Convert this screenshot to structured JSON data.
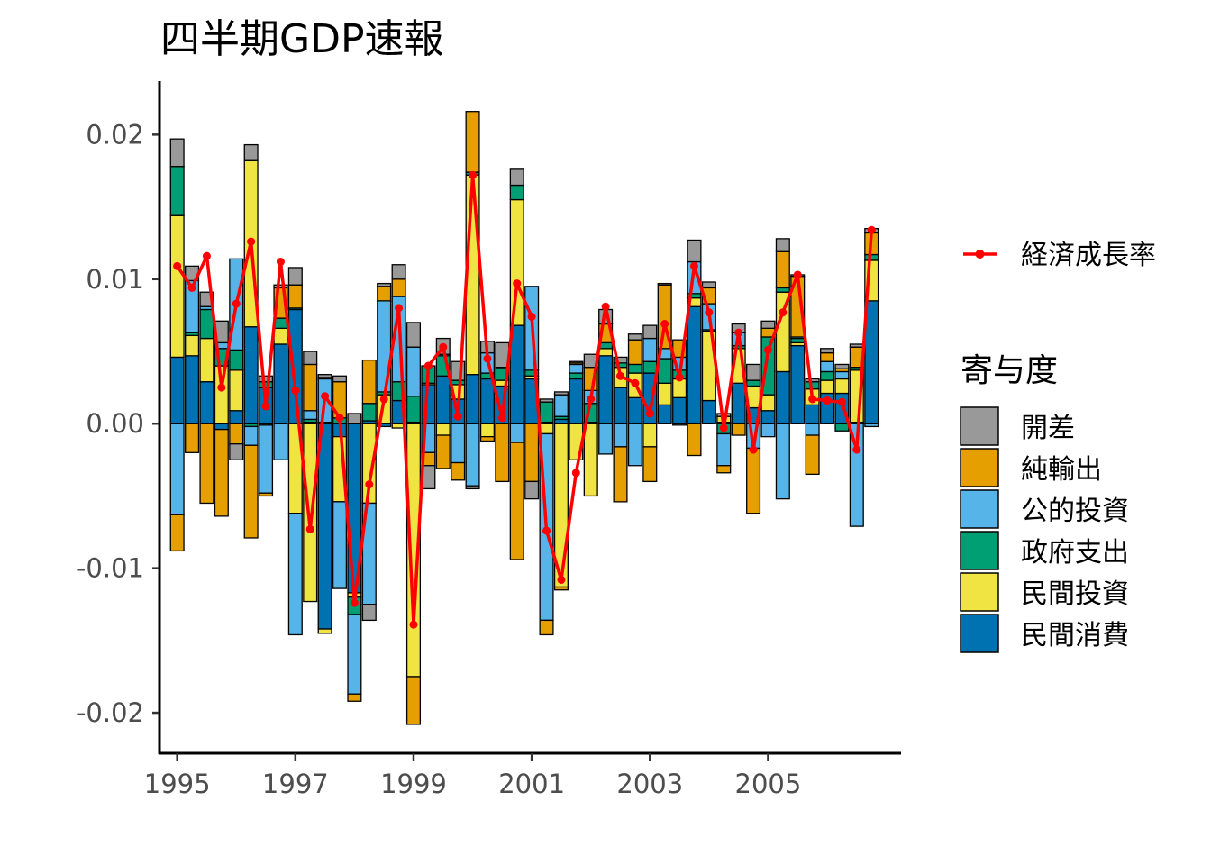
{
  "chart_data": {
    "type": "bar",
    "title": "四半期GDP速報",
    "xlabel": "",
    "ylabel": "",
    "ylim": [
      -0.0228,
      0.0237
    ],
    "xlim": [
      1994.7,
      2007.25
    ],
    "y_ticks": [
      -0.02,
      -0.01,
      0.0,
      0.01,
      0.02
    ],
    "y_tick_labels": [
      "-0.02",
      "-0.01",
      "0.00",
      "0.01",
      "0.02"
    ],
    "x_ticks": [
      1995,
      1997,
      1999,
      2001,
      2003,
      2005
    ],
    "x_tick_labels": [
      "1995",
      "1997",
      "1999",
      "2001",
      "2003",
      "2005"
    ],
    "x": [
      1995.0,
      1995.25,
      1995.5,
      1995.75,
      1996.0,
      1996.25,
      1996.5,
      1996.75,
      1997.0,
      1997.25,
      1997.5,
      1997.75,
      1998.0,
      1998.25,
      1998.5,
      1998.75,
      1999.0,
      1999.25,
      1999.5,
      1999.75,
      2000.0,
      2000.25,
      2000.5,
      2000.75,
      2001.0,
      2001.25,
      2001.5,
      2001.75,
      2002.0,
      2002.25,
      2002.5,
      2002.75,
      2003.0,
      2003.25,
      2003.5,
      2003.75,
      2004.0,
      2004.25,
      2004.5,
      2004.75,
      2005.0,
      2005.25,
      2005.5,
      2005.75,
      2006.0,
      2006.25,
      2006.5,
      2006.75
    ],
    "series": [
      {
        "name": "民間消費",
        "color": "#0072B2",
        "values": [
          0.0046,
          0.0047,
          0.0029,
          -0.0004,
          0.0009,
          0.0067,
          0.0025,
          0.0055,
          0.0079,
          0.0001,
          -0.0142,
          -0.0009,
          -0.0117,
          0.0002,
          -0.0002,
          0.0016,
          0.0001,
          0.0027,
          0.0033,
          0.0017,
          0.0034,
          0.0031,
          0.0026,
          0.0068,
          0.0031,
          0.0001,
          0.0003,
          0.0031,
          0.0001,
          0.0047,
          0.0025,
          0.0018,
          0.0035,
          0.0013,
          0.0018,
          0.0081,
          0.0016,
          0.0001,
          0.0028,
          0.0011,
          0.0009,
          0.0036,
          0.0054,
          0.0013,
          0.0021,
          0.0021,
          0.0001,
          0.0085
        ]
      },
      {
        "name": "民間投資",
        "color": "#F0E442",
        "values": [
          0.0098,
          0.0014,
          0.003,
          0.004,
          0.0028,
          0.0115,
          -0.0001,
          0.0011,
          -0.0062,
          -0.0123,
          -0.0003,
          -0.0045,
          -0.0003,
          -0.0055,
          0.002,
          -0.0003,
          -0.0175,
          0.0001,
          -0.0008,
          0.001,
          0.0138,
          -0.0009,
          0.0004,
          0.0087,
          0.0002,
          -0.0007,
          -0.0113,
          -0.0025,
          -0.005,
          0.0005,
          0.0014,
          0.0017,
          -0.0016,
          0.0015,
          0.0013,
          0.0006,
          0.0048,
          0.0004,
          0.0024,
          0.0015,
          0.0011,
          0.0055,
          0.0002,
          0.0011,
          0.0009,
          0.001,
          0.0036,
          0.0028
        ]
      },
      {
        "name": "政府支出",
        "color": "#009E73",
        "values": [
          0.0034,
          0.0002,
          0.002,
          0.0012,
          0.0014,
          -0.0002,
          0.0004,
          0.0007,
          0.0001,
          0.0002,
          0.0001,
          0.0004,
          -0.0012,
          0.0012,
          0.0002,
          0.0013,
          0.0018,
          0.0012,
          0.0014,
          0.0003,
          0.0002,
          0.0004,
          0.0008,
          0.001,
          0.0004,
          0.0014,
          0.0002,
          0.0004,
          0.0013,
          0.0004,
          0.0003,
          0.0006,
          0.0008,
          0.0017,
          0.0006,
          0.0003,
          0.0001,
          -0.0007,
          0.0002,
          0.0004,
          0.004,
          0.0003,
          0.0003,
          0.0005,
          0.0006,
          -0.0005,
          0.0002,
          0.0004
        ]
      },
      {
        "name": "公的投資",
        "color": "#56B4E9",
        "values": [
          -0.0063,
          0.0036,
          0.0002,
          0.0004,
          0.0063,
          -0.0013,
          -0.0047,
          -0.0025,
          -0.0084,
          0.0006,
          0.003,
          -0.006,
          -0.0055,
          -0.007,
          0.0063,
          0.0059,
          0.0034,
          -0.002,
          0.0001,
          -0.0027,
          -0.0043,
          0.0014,
          0.0001,
          -0.0013,
          0.0058,
          -0.0129,
          0.0015,
          0.0006,
          0.0009,
          -0.0021,
          -0.0016,
          -0.0029,
          0.0016,
          0.0007,
          0.0009,
          0.0022,
          0.0018,
          -0.0022,
          0.0009,
          -0.0017,
          -0.0009,
          -0.0052,
          0.0001,
          -0.0008,
          0.0007,
          0.0005,
          -0.0071,
          -0.0002
        ]
      },
      {
        "name": "純輸出",
        "color": "#E69F00",
        "values": [
          -0.0025,
          -0.002,
          -0.0055,
          -0.006,
          -0.0014,
          -0.0064,
          -0.0002,
          0.0021,
          0.0016,
          0.0032,
          0.0001,
          0.0025,
          -0.0005,
          0.003,
          0.001,
          0.0012,
          -0.0033,
          -0.0009,
          -0.0023,
          -0.0012,
          0.0042,
          -0.0003,
          -0.004,
          -0.0081,
          -0.004,
          -0.001,
          -0.0002,
          0.0001,
          0.0016,
          0.0013,
          -0.0038,
          0.0017,
          -0.0024,
          0.0044,
          0.0012,
          -0.0022,
          0.0011,
          -0.0005,
          -0.0008,
          -0.0045,
          0.0006,
          0.0025,
          0.0042,
          -0.0027,
          0.0006,
          0.0002,
          0.0014,
          0.0015
        ]
      },
      {
        "name": "開差",
        "color": "#999999",
        "values": [
          0.0019,
          0.001,
          0.001,
          0.0015,
          -0.0011,
          0.0011,
          0.0004,
          0.0002,
          0.0012,
          0.0009,
          0.0002,
          0.0004,
          0.0007,
          -0.0011,
          0.0002,
          0.001,
          0.0017,
          -0.0016,
          0.0011,
          0.0013,
          -0.0002,
          0.0008,
          0.0017,
          0.0011,
          -0.0012,
          0.0002,
          0.0002,
          0.0001,
          0.0009,
          0.001,
          0.0004,
          0.0004,
          0.0009,
          0.0001,
          -0.0001,
          0.0015,
          0.0004,
          0.0002,
          0.0006,
          0.0011,
          0.0005,
          0.0009,
          0.0001,
          0.0002,
          0.0003,
          0.0003,
          0.0002,
          0.0003
        ]
      }
    ],
    "line": {
      "name": "経済成長率",
      "color": "#FF0000",
      "values": [
        0.0109,
        0.0094,
        0.0116,
        0.0025,
        0.0083,
        0.0126,
        0.0012,
        0.0112,
        0.0023,
        -0.0073,
        0.0019,
        0.0004,
        -0.0124,
        -0.0042,
        0.0017,
        0.008,
        -0.0139,
        0.004,
        0.0053,
        0.0005,
        0.0172,
        0.0045,
        0.0004,
        0.0097,
        0.0074,
        -0.0074,
        -0.0108,
        -0.0034,
        0.0017,
        0.0081,
        0.0033,
        0.0028,
        0.0007,
        0.0069,
        0.0032,
        0.0109,
        0.0077,
        -0.0003,
        0.0063,
        -0.0018,
        0.0051,
        0.0077,
        0.0103,
        0.0017,
        0.0016,
        0.0015,
        -0.0018,
        0.0134
      ]
    },
    "legend_position": "right",
    "legend_line_label": "経済成長率",
    "legend_title": "寄与度",
    "legend_items": [
      "開差",
      "純輸出",
      "公的投資",
      "政府支出",
      "民間投資",
      "民間消費"
    ]
  }
}
